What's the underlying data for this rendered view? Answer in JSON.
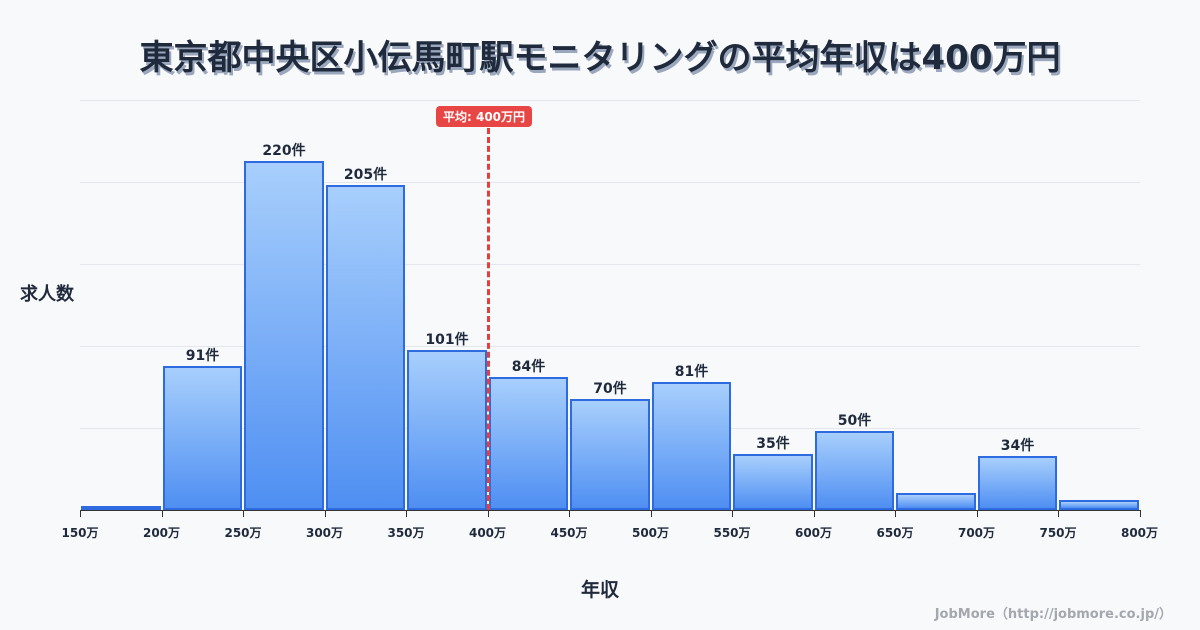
{
  "title": "東京都中央区小伝馬町駅モニタリングの平均年収は400万円",
  "axis": {
    "ylabel": "求人数",
    "xlabel": "年収"
  },
  "mean_badge": "平均: 400万円",
  "credit": "JobMore（http://jobmore.co.jp/）",
  "tick_labels": [
    "150万",
    "200万",
    "250万",
    "300万",
    "350万",
    "400万",
    "450万",
    "500万",
    "550万",
    "600万",
    "650万",
    "700万",
    "750万",
    "800万"
  ],
  "bar_labels": [
    "",
    "91件",
    "220件",
    "205件",
    "101件",
    "84件",
    "70件",
    "81件",
    "35件",
    "50件",
    "",
    "34件",
    ""
  ],
  "colors": {
    "bar_border": "#2f6be0",
    "bar_top": "#a8cffc",
    "bar_bottom": "#4f8ff2",
    "mean_line": "#e53e3e",
    "title": "#1f2a3c"
  },
  "chart_data": {
    "type": "bar",
    "title": "東京都中央区小伝馬町駅モニタリングの平均年収は400万円",
    "xlabel": "年収",
    "ylabel": "求人数",
    "categories": [
      "150-200万",
      "200-250万",
      "250-300万",
      "300-350万",
      "350-400万",
      "400-450万",
      "450-500万",
      "500-550万",
      "550-600万",
      "600-650万",
      "650-700万",
      "700-750万",
      "750-800万"
    ],
    "values": [
      2,
      91,
      220,
      205,
      101,
      84,
      70,
      81,
      35,
      50,
      11,
      34,
      6
    ],
    "x_ticks": [
      "150万",
      "200万",
      "250万",
      "300万",
      "350万",
      "400万",
      "450万",
      "500万",
      "550万",
      "600万",
      "650万",
      "700万",
      "750万",
      "800万"
    ],
    "mean": 400,
    "mean_label": "平均: 400万円",
    "grid": true,
    "ylim": [
      0,
      250
    ]
  }
}
